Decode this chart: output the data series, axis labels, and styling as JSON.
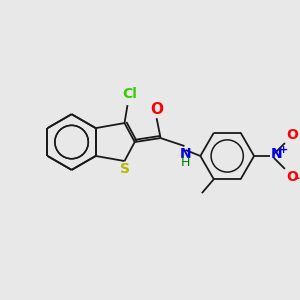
{
  "background_color": "#e8e8e8",
  "bond_color": "#1a1a1a",
  "atom_colors": {
    "S": "#b8b800",
    "Cl": "#33cc00",
    "O": "#ff0000",
    "N": "#0000ee",
    "H": "#007700",
    "plus": "#0000ee",
    "minus": "#ff0000"
  },
  "font_size": 9,
  "lw": 1.3
}
